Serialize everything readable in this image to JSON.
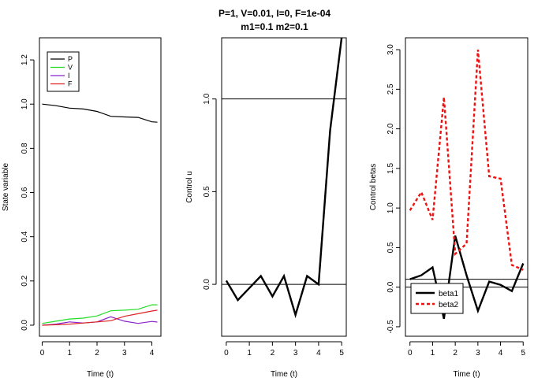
{
  "title_line1": "P=1, V=0.01, I=0, F=1e-04",
  "title_line2": "m1=0.1 m2=0.1",
  "chart_data": [
    {
      "type": "line",
      "xlabel": "Time (t)",
      "ylabel": "State variable",
      "xlim": [
        -0.1,
        4.33
      ],
      "ylim": [
        -0.05,
        1.3
      ],
      "xticks": [
        0,
        1,
        2,
        3,
        4
      ],
      "yticks": [
        0.0,
        0.2,
        0.4,
        0.6,
        0.8,
        1.0,
        1.2
      ],
      "ytick_labels": [
        "0.0",
        "0.2",
        "0.4",
        "0.6",
        "0.8",
        "1.0",
        "1.2"
      ],
      "legend_position": "top-left",
      "x": [
        0,
        0.5,
        1.0,
        1.5,
        2.0,
        2.5,
        3.0,
        3.5,
        4.0,
        4.2
      ],
      "series": [
        {
          "name": "P",
          "color": "#000000",
          "values": [
            1.0,
            0.993,
            0.982,
            0.978,
            0.967,
            0.945,
            0.942,
            0.94,
            0.92,
            0.918
          ]
        },
        {
          "name": "V",
          "color": "#22dd22",
          "values": [
            0.008,
            0.018,
            0.028,
            0.032,
            0.042,
            0.065,
            0.068,
            0.072,
            0.092,
            0.092
          ]
        },
        {
          "name": "I",
          "color": "#8822cc",
          "values": [
            0.0,
            0.005,
            0.015,
            0.01,
            0.015,
            0.038,
            0.018,
            0.008,
            0.017,
            0.014
          ]
        },
        {
          "name": "F",
          "color": "#dd2222",
          "values": [
            0.0,
            0.002,
            0.005,
            0.01,
            0.015,
            0.02,
            0.04,
            0.052,
            0.064,
            0.068
          ]
        }
      ]
    },
    {
      "type": "line",
      "xlabel": "Time (t)",
      "ylabel": "Control u",
      "xlim": [
        -0.2,
        5.2
      ],
      "ylim": [
        -0.28,
        1.33
      ],
      "xticks": [
        0,
        1,
        2,
        3,
        4,
        5
      ],
      "yticks": [
        0.0,
        0.5,
        1.0
      ],
      "ytick_labels": [
        "0.0",
        "0.5",
        "1.0"
      ],
      "hlines": [
        0,
        1
      ],
      "x": [
        0,
        0.5,
        1.0,
        1.5,
        2.0,
        2.5,
        3.0,
        3.5,
        4.0,
        4.5,
        5.0
      ],
      "series": [
        {
          "color": "#000000",
          "values": [
            0.02,
            -0.085,
            -0.02,
            0.045,
            -0.065,
            0.045,
            -0.165,
            0.045,
            0.0,
            0.83,
            1.33
          ]
        }
      ]
    },
    {
      "type": "line",
      "xlabel": "Time (t)",
      "ylabel": "Control betas",
      "xlim": [
        -0.2,
        5.2
      ],
      "ylim": [
        -0.62,
        3.15
      ],
      "xticks": [
        0,
        1,
        2,
        3,
        4,
        5
      ],
      "yticks": [
        -0.5,
        0.0,
        0.5,
        1.0,
        1.5,
        2.0,
        2.5,
        3.0
      ],
      "ytick_labels": [
        "-0.5",
        "0.0",
        "0.5",
        "1.0",
        "1.5",
        "2.0",
        "2.5",
        "3.0"
      ],
      "hlines": [
        0,
        0.1
      ],
      "legend_position": "bottom-left",
      "x": [
        0,
        0.5,
        1.0,
        1.5,
        2.0,
        2.5,
        3.0,
        3.5,
        4.0,
        4.5,
        5.0
      ],
      "series": [
        {
          "name": "beta1",
          "color": "#000000",
          "dashed": false,
          "values": [
            0.1,
            0.15,
            0.25,
            -0.4,
            0.65,
            0.15,
            -0.3,
            0.07,
            0.03,
            -0.05,
            0.3
          ]
        },
        {
          "name": "beta2",
          "color": "#ee1111",
          "dashed": true,
          "values": [
            0.97,
            1.2,
            0.85,
            2.4,
            0.42,
            0.55,
            3.0,
            1.4,
            1.37,
            0.28,
            0.22
          ]
        }
      ]
    }
  ]
}
